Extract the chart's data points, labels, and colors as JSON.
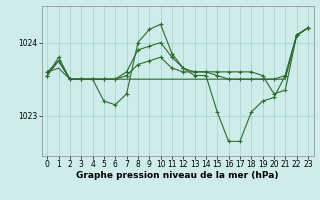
{
  "bg_color": "#ceecea",
  "grid_color": "#aad4d0",
  "line_color": "#2d6a2d",
  "marker_color": "#2d6a2d",
  "yticks": [
    1023.0,
    1024.0
  ],
  "ylim": [
    1022.45,
    1024.5
  ],
  "xlim": [
    -0.5,
    23.5
  ],
  "xticks": [
    0,
    1,
    2,
    3,
    4,
    5,
    6,
    7,
    8,
    9,
    10,
    11,
    12,
    13,
    14,
    15,
    16,
    17,
    18,
    19,
    20,
    21,
    22,
    23
  ],
  "xlabel": "Graphe pression niveau de la mer (hPa)",
  "series": [
    [
      1023.55,
      1023.75,
      1023.5,
      1023.5,
      1023.5,
      1023.2,
      1023.15,
      1023.3,
      1024.0,
      1024.18,
      1024.25,
      1023.85,
      1023.65,
      1023.55,
      1023.55,
      1023.05,
      1022.65,
      1022.65,
      1023.05,
      1023.2,
      1023.25,
      1023.55,
      1024.1,
      1024.2
    ],
    [
      1023.6,
      1023.65,
      1023.5,
      1023.5,
      1023.5,
      1023.5,
      1023.5,
      1023.5,
      1023.5,
      1023.5,
      1023.5,
      1023.5,
      1023.5,
      1023.5,
      1023.5,
      1023.5,
      1023.5,
      1023.5,
      1023.5,
      1023.5,
      1023.5,
      1023.5,
      1024.1,
      1024.2
    ],
    [
      1023.6,
      1023.75,
      1023.5,
      1023.5,
      1023.5,
      1023.5,
      1023.5,
      1023.55,
      1023.7,
      1023.75,
      1023.8,
      1023.65,
      1023.6,
      1023.6,
      1023.6,
      1023.6,
      1023.6,
      1023.6,
      1023.6,
      1023.55,
      1023.3,
      1023.35,
      1024.1,
      1024.2
    ],
    [
      1023.55,
      1023.8,
      1023.5,
      1023.5,
      1023.5,
      1023.5,
      1023.5,
      1023.6,
      1023.9,
      1023.95,
      1024.0,
      1023.8,
      1023.65,
      1023.6,
      1023.6,
      1023.55,
      1023.5,
      1023.5,
      1023.5,
      1023.5,
      1023.5,
      1023.55,
      1024.1,
      1024.2
    ]
  ],
  "title_fontsize": 6.5,
  "tick_fontsize": 5.5
}
